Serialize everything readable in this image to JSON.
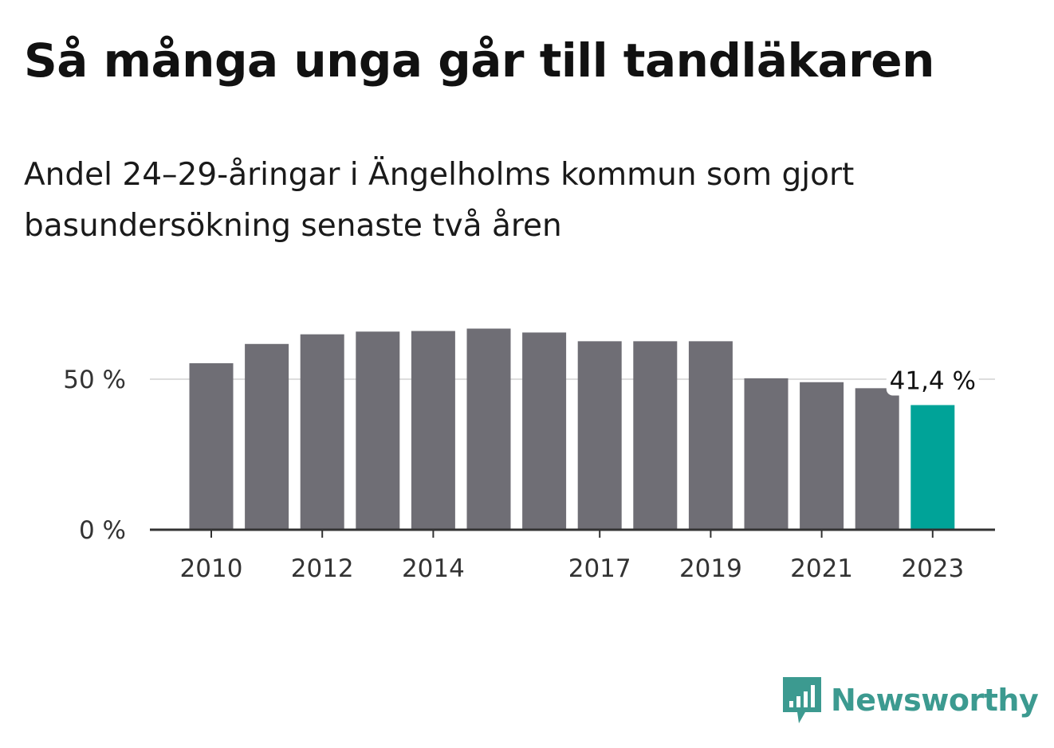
{
  "title": "Så många unga går till tandläkaren",
  "subtitle": "Andel 24–29-åringar i Ängelholms kommun som gjort basundersökning senaste två åren",
  "logo": {
    "text": "Newsworthy",
    "icon": "newsworthy-chart-bubble-icon"
  },
  "colors": {
    "bar": "#6f6e75",
    "highlight": "#00a398",
    "grid": "#dddddd",
    "axis": "#333333",
    "brand": "#3c9a90"
  },
  "chart_data": {
    "type": "bar",
    "x": [
      2010,
      2011,
      2012,
      2013,
      2014,
      2015,
      2016,
      2017,
      2018,
      2019,
      2020,
      2021,
      2022,
      2023
    ],
    "values": [
      55.3,
      61.7,
      64.9,
      65.8,
      66.0,
      66.8,
      65.5,
      62.6,
      62.6,
      62.6,
      50.3,
      49.0,
      47.0,
      41.4
    ],
    "highlight_index": 13,
    "xtick_labels": [
      "2010",
      "2012",
      "2014",
      "2017",
      "2019",
      "2021",
      "2023"
    ],
    "ytick_values": [
      0,
      50
    ],
    "ytick_labels": [
      "0 %",
      "50 %"
    ],
    "ylim": [
      0,
      70
    ],
    "annotation": {
      "x": 2023,
      "text": "41,4 %"
    },
    "grid": true
  }
}
